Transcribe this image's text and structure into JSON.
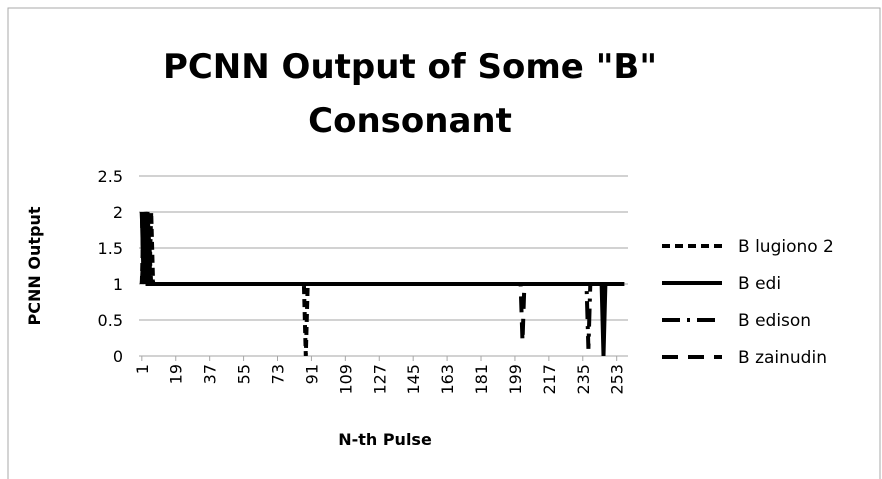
{
  "chart_data": {
    "type": "line",
    "title": [
      "PCNN Output of Some \"B\"",
      "Consonant"
    ],
    "x_label": "N-th Pulse",
    "y_label": "PCNN Output",
    "xlim": [
      -0.5,
      259
    ],
    "xticks": [
      1,
      19,
      37,
      55,
      73,
      91,
      109,
      127,
      145,
      163,
      181,
      199,
      217,
      235,
      253
    ],
    "ylim": [
      0,
      2.5
    ],
    "yticks": [
      0,
      0.5,
      1,
      1.5,
      2,
      2.5
    ],
    "grid": true,
    "legend": "right",
    "series": [
      {
        "name": "B lugiono 2",
        "color": "#000000",
        "style": "dash",
        "x": [
          1,
          2,
          3,
          4,
          5,
          6,
          7,
          87,
          88,
          89,
          257
        ],
        "values": [
          1,
          2,
          1,
          2,
          1,
          2,
          1,
          1,
          0,
          1,
          1
        ]
      },
      {
        "name": "B edi",
        "color": "#000000",
        "style": "solid",
        "x": [
          1,
          2,
          3,
          4,
          5,
          245,
          246,
          247,
          257
        ],
        "values": [
          2,
          1,
          2,
          1,
          1,
          1,
          0,
          1,
          1
        ]
      },
      {
        "name": "B edison",
        "color": "#000000",
        "style": "dash-dot",
        "x": [
          1,
          3,
          5,
          7,
          237,
          238,
          239,
          257
        ],
        "values": [
          1,
          2,
          1.5,
          1,
          1,
          0.1,
          1,
          1
        ]
      },
      {
        "name": "B zainudin",
        "color": "#000000",
        "style": "long-dash",
        "x": [
          1,
          2,
          4,
          6,
          8,
          202,
          203,
          204,
          257
        ],
        "values": [
          2,
          1,
          2,
          1,
          1,
          1,
          0.2,
          1,
          1
        ]
      }
    ]
  }
}
